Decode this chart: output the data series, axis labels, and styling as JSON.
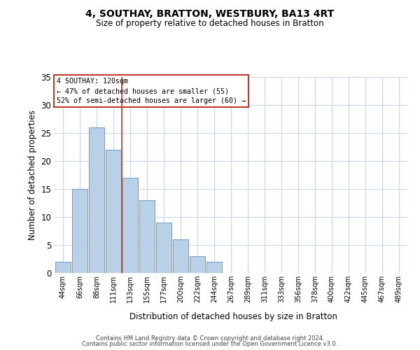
{
  "title1": "4, SOUTHAY, BRATTON, WESTBURY, BA13 4RT",
  "title2": "Size of property relative to detached houses in Bratton",
  "xlabel": "Distribution of detached houses by size in Bratton",
  "ylabel": "Number of detached properties",
  "footer1": "Contains HM Land Registry data © Crown copyright and database right 2024.",
  "footer2": "Contains public sector information licensed under the Open Government Licence v3.0.",
  "annotation_line1": "4 SOUTHAY: 120sqm",
  "annotation_line2": "← 47% of detached houses are smaller (55)",
  "annotation_line3": "52% of semi-detached houses are larger (60) →",
  "bar_labels": [
    "44sqm",
    "66sqm",
    "88sqm",
    "111sqm",
    "133sqm",
    "155sqm",
    "177sqm",
    "200sqm",
    "222sqm",
    "244sqm",
    "267sqm",
    "289sqm",
    "311sqm",
    "333sqm",
    "356sqm",
    "378sqm",
    "400sqm",
    "422sqm",
    "445sqm",
    "467sqm",
    "489sqm"
  ],
  "bar_values": [
    2,
    15,
    26,
    22,
    17,
    13,
    9,
    6,
    3,
    2,
    0,
    0,
    0,
    0,
    0,
    0,
    0,
    0,
    0,
    0,
    0
  ],
  "bar_color": "#b8d0e8",
  "bar_edgecolor": "#6090c0",
  "vline_pos": 3.5,
  "vline_color": "#c0392b",
  "ylim": [
    0,
    35
  ],
  "yticks": [
    0,
    5,
    10,
    15,
    20,
    25,
    30,
    35
  ],
  "grid_color": "#c8d8ee",
  "annotation_box_edgecolor": "#c0392b",
  "annotation_box_facecolor": "white"
}
